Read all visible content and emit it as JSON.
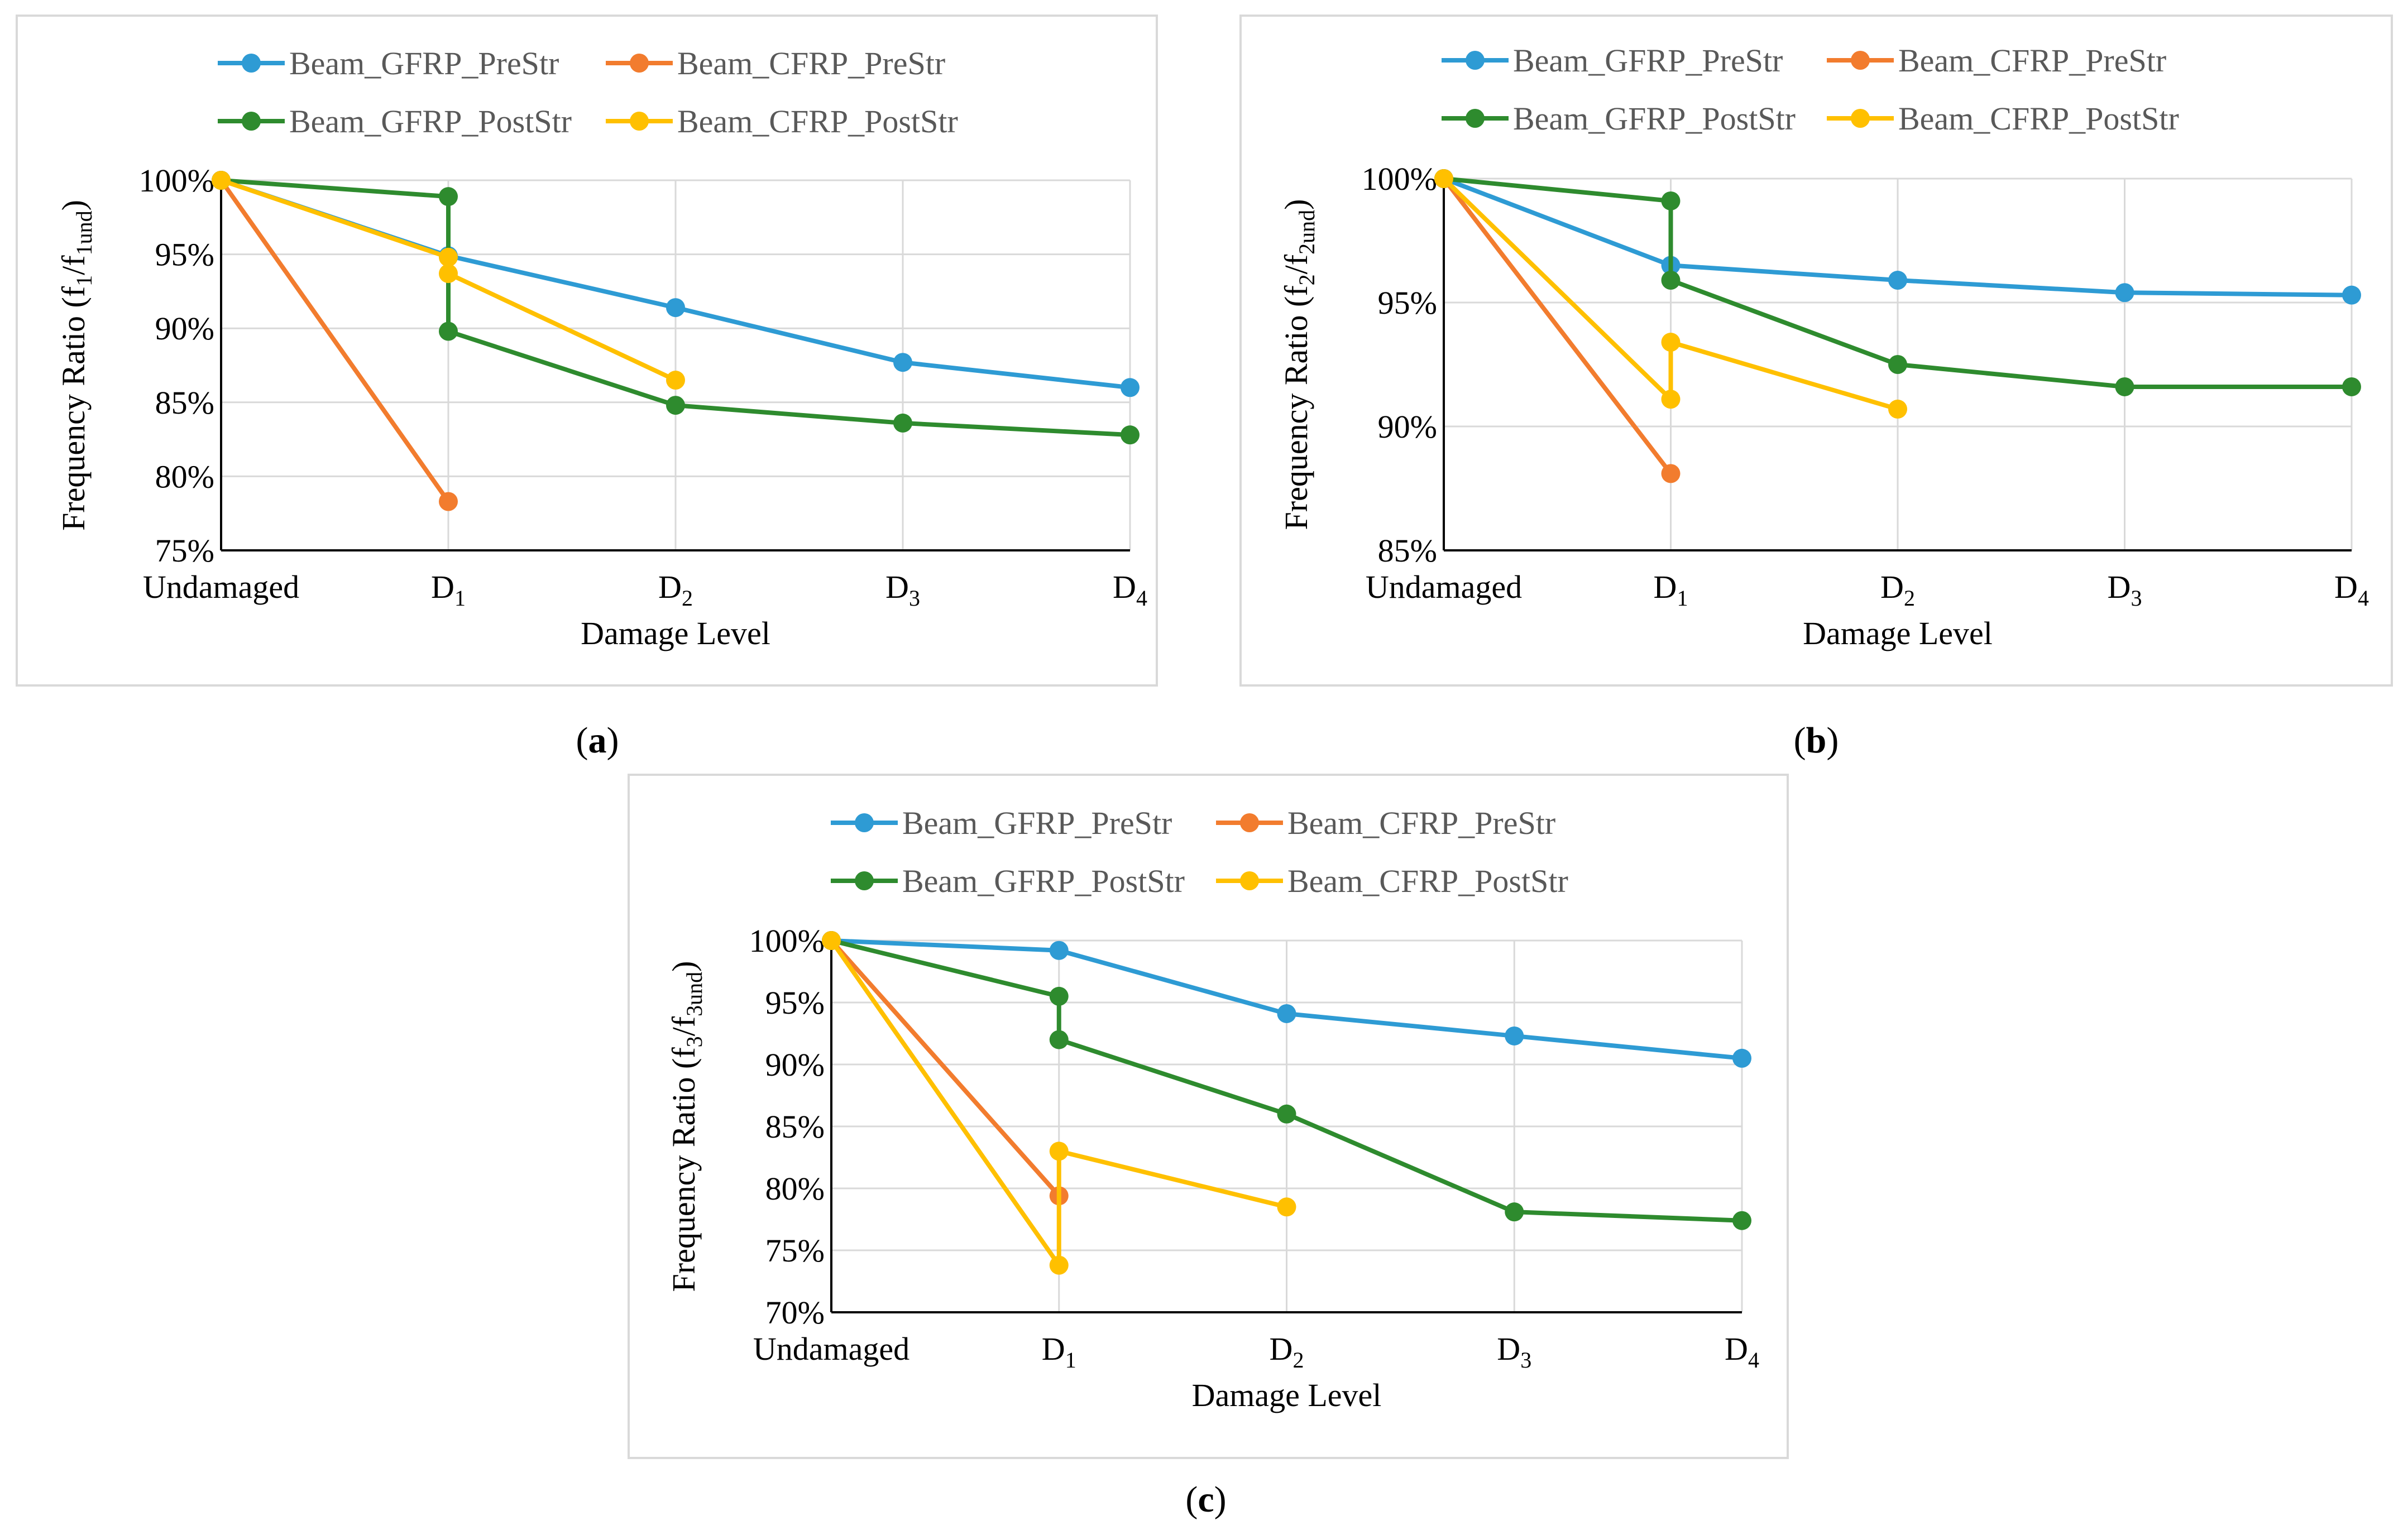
{
  "captions": [
    "a",
    "b",
    "c"
  ],
  "colors": {
    "Beam_GFRP_PreStr": "#2E9BD4",
    "Beam_CFRP_PreStr": "#F27C2E",
    "Beam_GFRP_PostStr": "#2E8B2E",
    "Beam_CFRP_PostStr": "#FFC000",
    "grid": "#D9D9D9",
    "axis": "#000000",
    "frame": "#D9D9D9"
  },
  "chart_data": [
    {
      "type": "line",
      "panel": "a",
      "xlabel": "Damage Level",
      "ylabel": "Frequency Ratio (f1/f1und)",
      "ylabel_parts": [
        "Frequency Ratio (f",
        "1",
        "/f",
        "1und",
        ")"
      ],
      "categories": [
        {
          "base": "Undamaged",
          "sub": ""
        },
        {
          "base": "D",
          "sub": "1"
        },
        {
          "base": "D",
          "sub": "2"
        },
        {
          "base": "D",
          "sub": "3"
        },
        {
          "base": "D",
          "sub": "4"
        }
      ],
      "ylim": [
        75,
        100
      ],
      "yticks": [
        75,
        80,
        85,
        90,
        95,
        100
      ],
      "ytick_labels": [
        "75%",
        "80%",
        "85%",
        "90%",
        "95%",
        "100%"
      ],
      "legend": [
        [
          "Beam_GFRP_PreStr",
          "Beam_CFRP_PreStr"
        ],
        [
          "Beam_GFRP_PostStr",
          "Beam_CFRP_PostStr"
        ]
      ],
      "series": [
        {
          "name": "Beam_GFRP_PreStr",
          "points": [
            [
              0,
              100
            ],
            [
              1,
              94.9
            ],
            [
              2,
              91.4
            ],
            [
              3,
              87.7
            ],
            [
              4,
              86.0
            ]
          ]
        },
        {
          "name": "Beam_CFRP_PreStr",
          "points": [
            [
              0,
              100
            ],
            [
              1,
              78.3
            ]
          ]
        },
        {
          "name": "Beam_GFRP_PostStr",
          "points": [
            [
              0,
              100
            ],
            [
              1,
              98.9
            ],
            [
              1,
              89.8
            ],
            [
              2,
              84.8
            ],
            [
              3,
              83.6
            ],
            [
              4,
              82.8
            ]
          ]
        },
        {
          "name": "Beam_CFRP_PostStr",
          "points": [
            [
              0,
              100
            ],
            [
              1,
              94.8
            ],
            [
              1,
              93.7
            ],
            [
              2,
              86.5
            ]
          ]
        }
      ]
    },
    {
      "type": "line",
      "panel": "b",
      "xlabel": "Damage Level",
      "ylabel": "Frequency Ratio (f2/f2und)",
      "ylabel_parts": [
        "Frequency Ratio (f",
        "2",
        "/f",
        "2und",
        ")"
      ],
      "categories": [
        {
          "base": "Undamaged",
          "sub": ""
        },
        {
          "base": "D",
          "sub": "1"
        },
        {
          "base": "D",
          "sub": "2"
        },
        {
          "base": "D",
          "sub": "3"
        },
        {
          "base": "D",
          "sub": "4"
        }
      ],
      "ylim": [
        85,
        100
      ],
      "yticks": [
        85,
        90,
        95,
        100
      ],
      "ytick_labels": [
        "85%",
        "90%",
        "95%",
        "100%"
      ],
      "legend": [
        [
          "Beam_GFRP_PreStr",
          "Beam_CFRP_PreStr"
        ],
        [
          "Beam_GFRP_PostStr",
          "Beam_CFRP_PostStr"
        ]
      ],
      "series": [
        {
          "name": "Beam_GFRP_PreStr",
          "points": [
            [
              0,
              100
            ],
            [
              1,
              96.5
            ],
            [
              2,
              95.9
            ],
            [
              3,
              95.4
            ],
            [
              4,
              95.3
            ]
          ]
        },
        {
          "name": "Beam_CFRP_PreStr",
          "points": [
            [
              0,
              100
            ],
            [
              1,
              88.1
            ]
          ]
        },
        {
          "name": "Beam_GFRP_PostStr",
          "points": [
            [
              0,
              100
            ],
            [
              1,
              99.1
            ],
            [
              1,
              95.9
            ],
            [
              2,
              92.5
            ],
            [
              3,
              91.6
            ],
            [
              4,
              91.6
            ]
          ]
        },
        {
          "name": "Beam_CFRP_PostStr",
          "points": [
            [
              0,
              100
            ],
            [
              1,
              91.1
            ],
            [
              1,
              93.4
            ],
            [
              2,
              90.7
            ]
          ]
        }
      ]
    },
    {
      "type": "line",
      "panel": "c",
      "xlabel": "Damage Level",
      "ylabel": "Frequency Ratio (f3/f3und)",
      "ylabel_parts": [
        "Frequency Ratio (f",
        "3",
        "/f",
        "3und",
        ")"
      ],
      "categories": [
        {
          "base": "Undamaged",
          "sub": ""
        },
        {
          "base": "D",
          "sub": "1"
        },
        {
          "base": "D",
          "sub": "2"
        },
        {
          "base": "D",
          "sub": "3"
        },
        {
          "base": "D",
          "sub": "4"
        }
      ],
      "ylim": [
        70,
        100
      ],
      "yticks": [
        70,
        75,
        80,
        85,
        90,
        95,
        100
      ],
      "ytick_labels": [
        "70%",
        "75%",
        "80%",
        "85%",
        "90%",
        "95%",
        "100%"
      ],
      "legend": [
        [
          "Beam_GFRP_PreStr",
          "Beam_CFRP_PreStr"
        ],
        [
          "Beam_GFRP_PostStr",
          "Beam_CFRP_PostStr"
        ]
      ],
      "series": [
        {
          "name": "Beam_GFRP_PreStr",
          "points": [
            [
              0,
              100
            ],
            [
              1,
              99.2
            ],
            [
              2,
              94.1
            ],
            [
              3,
              92.3
            ],
            [
              4,
              90.5
            ]
          ]
        },
        {
          "name": "Beam_CFRP_PreStr",
          "points": [
            [
              0,
              100
            ],
            [
              1,
              79.4
            ]
          ]
        },
        {
          "name": "Beam_GFRP_PostStr",
          "points": [
            [
              0,
              100
            ],
            [
              1,
              95.5
            ],
            [
              1,
              92.0
            ],
            [
              2,
              86.0
            ],
            [
              3,
              78.1
            ],
            [
              4,
              77.4
            ]
          ]
        },
        {
          "name": "Beam_CFRP_PostStr",
          "points": [
            [
              0,
              100
            ],
            [
              1,
              73.8
            ],
            [
              1,
              83.0
            ],
            [
              2,
              78.5
            ]
          ]
        }
      ]
    }
  ]
}
